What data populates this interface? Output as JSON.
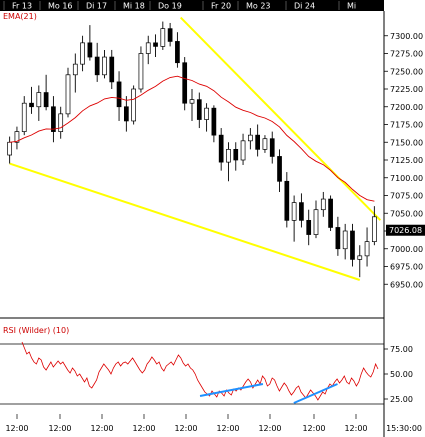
{
  "chart_data": [
    {
      "type": "candlestick",
      "indicator_label": "EMA(21)",
      "day_labels": [
        "Fr 13",
        "Mo 16",
        "Di 17",
        "Mi 18",
        "Do 19",
        "Fr 20",
        "Mo 23",
        "Di 24",
        "Mi"
      ],
      "ylim": [
        6925,
        7325
      ],
      "y_ticks": [
        "7300.00",
        "7275.00",
        "7250.00",
        "7225.00",
        "7200.00",
        "7175.00",
        "7150.00",
        "7125.00",
        "7100.00",
        "7075.00",
        "7050.00",
        "7025.00",
        "7000.00",
        "6975.00",
        "6950.00"
      ],
      "last_price": "7026.08",
      "colors": {
        "candle": "#000000",
        "ema": "#dd0000",
        "trendlines": "#ffff00",
        "header": "#000000",
        "price_tag": "#000000"
      },
      "candles": [
        [
          7132,
          7158,
          7120,
          7150
        ],
        [
          7150,
          7172,
          7140,
          7165
        ],
        [
          7165,
          7215,
          7160,
          7205
        ],
        [
          7205,
          7228,
          7190,
          7200
        ],
        [
          7200,
          7230,
          7180,
          7220
        ],
        [
          7220,
          7245,
          7195,
          7200
        ],
        [
          7200,
          7215,
          7150,
          7165
        ],
        [
          7165,
          7200,
          7155,
          7190
        ],
        [
          7190,
          7255,
          7185,
          7245
        ],
        [
          7245,
          7275,
          7220,
          7260
        ],
        [
          7260,
          7300,
          7250,
          7290
        ],
        [
          7290,
          7315,
          7265,
          7270
        ],
        [
          7270,
          7290,
          7235,
          7245
        ],
        [
          7245,
          7280,
          7240,
          7270
        ],
        [
          7270,
          7280,
          7225,
          7235
        ],
        [
          7235,
          7250,
          7180,
          7200
        ],
        [
          7200,
          7215,
          7165,
          7180
        ],
        [
          7180,
          7230,
          7175,
          7225
        ],
        [
          7225,
          7285,
          7220,
          7275
        ],
        [
          7275,
          7300,
          7260,
          7290
        ],
        [
          7290,
          7302,
          7270,
          7285
        ],
        [
          7285,
          7320,
          7280,
          7310
        ],
        [
          7310,
          7318,
          7285,
          7292
        ],
        [
          7292,
          7305,
          7255,
          7262
        ],
        [
          7262,
          7270,
          7195,
          7205
        ],
        [
          7205,
          7225,
          7180,
          7210
        ],
        [
          7210,
          7220,
          7170,
          7182
        ],
        [
          7182,
          7205,
          7165,
          7198
        ],
        [
          7198,
          7202,
          7150,
          7160
        ],
        [
          7160,
          7170,
          7110,
          7122
        ],
        [
          7122,
          7150,
          7095,
          7140
        ],
        [
          7140,
          7150,
          7110,
          7125
        ],
        [
          7125,
          7162,
          7118,
          7152
        ],
        [
          7152,
          7170,
          7140,
          7160
        ],
        [
          7160,
          7175,
          7130,
          7140
        ],
        [
          7140,
          7160,
          7135,
          7155
        ],
        [
          7155,
          7165,
          7120,
          7130
        ],
        [
          7130,
          7140,
          7080,
          7095
        ],
        [
          7095,
          7108,
          7030,
          7040
        ],
        [
          7040,
          7075,
          7010,
          7065
        ],
        [
          7065,
          7078,
          7030,
          7040
        ],
        [
          7040,
          7055,
          7005,
          7020
        ],
        [
          7020,
          7068,
          7015,
          7055
        ],
        [
          7055,
          7080,
          7045,
          7070
        ],
        [
          7070,
          7075,
          7025,
          7030
        ],
        [
          7030,
          7045,
          6990,
          7000
        ],
        [
          7000,
          7035,
          6985,
          7025
        ],
        [
          7025,
          7035,
          6975,
          6985
        ],
        [
          6985,
          7005,
          6960,
          6990
        ],
        [
          6990,
          7030,
          6975,
          7010
        ],
        [
          7010,
          7060,
          7005,
          7045
        ]
      ]
    },
    {
      "type": "line",
      "indicator_label": "RSI (Wilder) (10)",
      "ylim": [
        10,
        90
      ],
      "y_ticks": [
        "75.00",
        "50.00",
        "25.00"
      ],
      "reference_lines": [
        80,
        20
      ],
      "colors": {
        "rsi": "#dd0000",
        "divergence": "#1e90ff"
      },
      "values": [
        82,
        76,
        70,
        72,
        66,
        62,
        60,
        66,
        64,
        57,
        54,
        58,
        62,
        57,
        60,
        63,
        60,
        62,
        58,
        54,
        51,
        56,
        53,
        48,
        50,
        46,
        42,
        46,
        38,
        36,
        40,
        44,
        52,
        56,
        60,
        57,
        54,
        50,
        56,
        60,
        62,
        58,
        61,
        62,
        60,
        63,
        66,
        62,
        58,
        54,
        51,
        54,
        60,
        63,
        67,
        64,
        60,
        62,
        56,
        53,
        58,
        60,
        62,
        59,
        64,
        69,
        66,
        61,
        58,
        60,
        56,
        54,
        50,
        44,
        40,
        36,
        32,
        30,
        28,
        33,
        30,
        27,
        33,
        31,
        28,
        34,
        31,
        29,
        35,
        33,
        36,
        34,
        38,
        42,
        45,
        42,
        36,
        40,
        44,
        40,
        48,
        45,
        38,
        40,
        46,
        44,
        38,
        33,
        37,
        41,
        38,
        33,
        29,
        32,
        36,
        38,
        32,
        29,
        26,
        30,
        34,
        31,
        28,
        24,
        28,
        32,
        30,
        36,
        40,
        38,
        42,
        45,
        41,
        44,
        48,
        42,
        40,
        46,
        43,
        38,
        42,
        50,
        56,
        52,
        49,
        47,
        52,
        60,
        55
      ]
    },
    {
      "type": "time_axis",
      "labels": [
        "12:00",
        "12:00",
        "12:00",
        "12:00",
        "12:00",
        "12:00",
        "12:00",
        "12:00",
        "12:00"
      ],
      "end_label": "15:30:00"
    }
  ]
}
